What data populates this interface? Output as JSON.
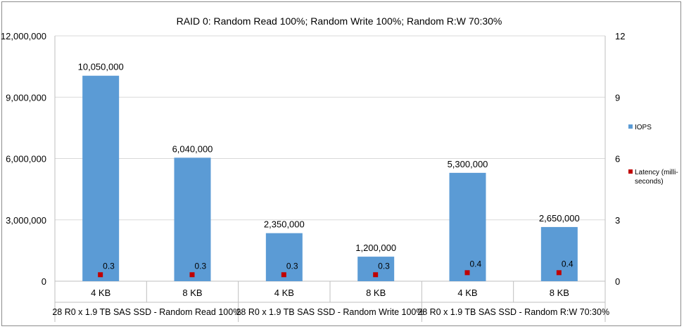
{
  "chart_data": {
    "type": "bar",
    "title": "RAID 0: Random Read 100%; Random Write 100%; Random R:W 70:30%",
    "categories": [
      "4 KB",
      "8 KB",
      "4 KB",
      "8 KB",
      "4 KB",
      "8 KB"
    ],
    "groups": [
      "28 R0 x 1.9 TB SAS SSD - Random Read 100%",
      "28 R0 x 1.9 TB SAS SSD - Random Write 100%",
      "28 R0 x 1.9 TB SAS SSD - Random R:W 70:30%"
    ],
    "series": [
      {
        "name": "IOPS",
        "type": "bar",
        "axis": "left",
        "color": "#5b9bd5",
        "values": [
          10050000,
          6040000,
          2350000,
          1200000,
          5300000,
          2650000
        ],
        "labels": [
          "10,050,000",
          "6,040,000",
          "2,350,000",
          "1,200,000",
          "5,300,000",
          "2,650,000"
        ]
      },
      {
        "name": "Latency (milli-seconds)",
        "type": "scatter",
        "axis": "right",
        "color": "#c00000",
        "values": [
          0.3,
          0.3,
          0.3,
          0.3,
          0.4,
          0.4
        ],
        "labels": [
          "0.3",
          "0.3",
          "0.3",
          "0.3",
          "0.4",
          "0.4"
        ]
      }
    ],
    "ylim_left": [
      0,
      12000000
    ],
    "yticks_left": [
      "0",
      "3,000,000",
      "6,000,000",
      "9,000,000",
      "12,000,000"
    ],
    "ylim_right": [
      0,
      12
    ],
    "yticks_right": [
      "0",
      "3",
      "6",
      "9",
      "12"
    ],
    "legend": {
      "position": "right",
      "items": [
        "IOPS",
        "Latency (milli-",
        "seconds)"
      ]
    }
  }
}
